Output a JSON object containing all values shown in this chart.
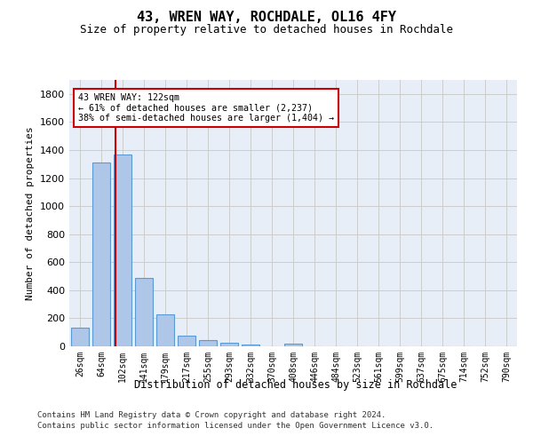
{
  "title1": "43, WREN WAY, ROCHDALE, OL16 4FY",
  "title2": "Size of property relative to detached houses in Rochdale",
  "xlabel": "Distribution of detached houses by size in Rochdale",
  "ylabel": "Number of detached properties",
  "bar_labels": [
    "26sqm",
    "64sqm",
    "102sqm",
    "141sqm",
    "179sqm",
    "217sqm",
    "255sqm",
    "293sqm",
    "332sqm",
    "370sqm",
    "408sqm",
    "446sqm",
    "484sqm",
    "523sqm",
    "561sqm",
    "599sqm",
    "637sqm",
    "675sqm",
    "714sqm",
    "752sqm",
    "790sqm"
  ],
  "bar_values": [
    135,
    1310,
    1365,
    490,
    225,
    75,
    42,
    27,
    12,
    0,
    18,
    0,
    0,
    0,
    0,
    0,
    0,
    0,
    0,
    0,
    0
  ],
  "bar_color": "#aec6e8",
  "bar_edge_color": "#5a9ad4",
  "annotation_text": "43 WREN WAY: 122sqm\n← 61% of detached houses are smaller (2,237)\n38% of semi-detached houses are larger (1,404) →",
  "annotation_box_color": "#ffffff",
  "annotation_box_edge_color": "#cc0000",
  "vline_color": "#cc0000",
  "ylim": [
    0,
    1900
  ],
  "yticks": [
    0,
    200,
    400,
    600,
    800,
    1000,
    1200,
    1400,
    1600,
    1800
  ],
  "grid_color": "#cccccc",
  "bg_color": "#e8eef8",
  "footer1": "Contains HM Land Registry data © Crown copyright and database right 2024.",
  "footer2": "Contains public sector information licensed under the Open Government Licence v3.0."
}
